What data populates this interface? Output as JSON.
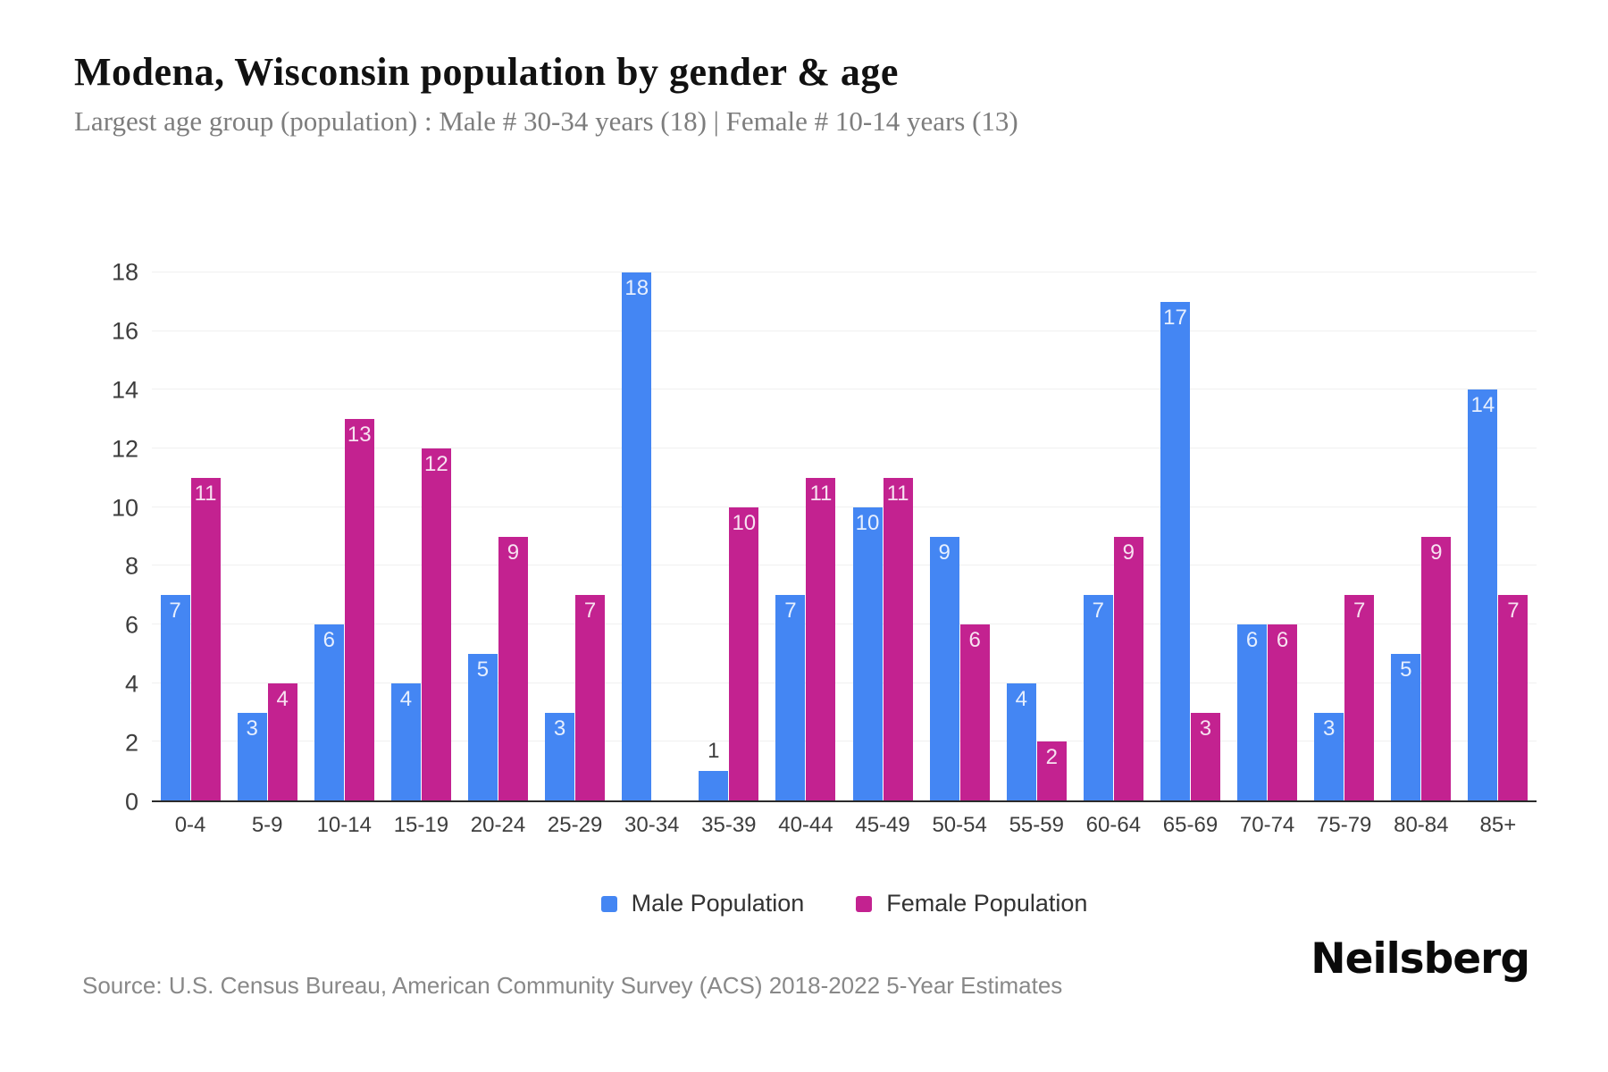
{
  "header": {
    "title": "Modena, Wisconsin population by gender & age",
    "subtitle": "Largest age group (population) : Male # 30-34 years (18) | Female # 10-14 years (13)"
  },
  "chart_data": {
    "type": "bar",
    "title": "Modena, Wisconsin population by gender & age",
    "categories": [
      "0-4",
      "5-9",
      "10-14",
      "15-19",
      "20-24",
      "25-29",
      "30-34",
      "35-39",
      "40-44",
      "45-49",
      "50-54",
      "55-59",
      "60-64",
      "65-69",
      "70-74",
      "75-79",
      "80-84",
      "85+"
    ],
    "series": [
      {
        "name": "Male Population",
        "color": "#4486F3",
        "values": [
          7,
          3,
          6,
          4,
          5,
          3,
          18,
          1,
          7,
          10,
          9,
          4,
          7,
          17,
          6,
          3,
          5,
          14
        ]
      },
      {
        "name": "Female Population",
        "color": "#C32290",
        "values": [
          11,
          4,
          13,
          12,
          9,
          7,
          0,
          10,
          11,
          11,
          6,
          2,
          9,
          3,
          6,
          7,
          9,
          7
        ]
      }
    ],
    "xlabel": "",
    "ylabel": "",
    "ylim": [
      0,
      18
    ],
    "ytick_step": 2,
    "yticks": [
      0,
      2,
      4,
      6,
      8,
      10,
      12,
      14,
      16,
      18
    ],
    "grid": "horizontal",
    "legend_position": "bottom",
    "value_label_position": "inside-top",
    "value_label_outside_threshold": 1,
    "label_inside_color": "rgba(255,255,255,0.87)",
    "label_outside_color": "#3d3d3d"
  },
  "footer": {
    "source": "Source: U.S. Census Bureau, American Community Survey (ACS) 2018-2022 5-Year Estimates",
    "logo": "Neilsberg"
  }
}
